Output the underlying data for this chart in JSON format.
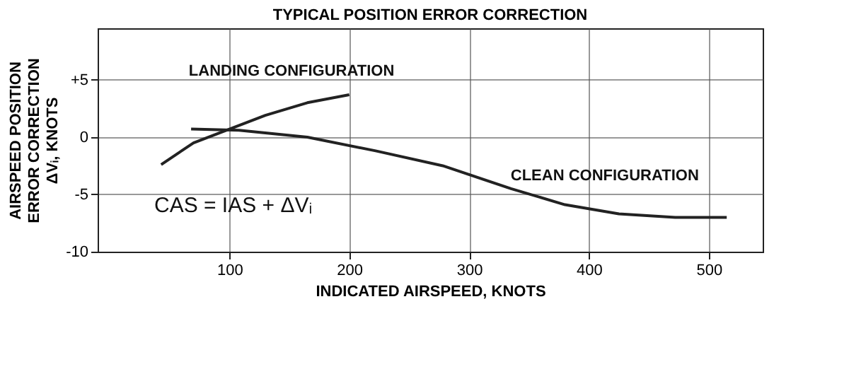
{
  "chart_data": {
    "type": "line",
    "title": "TYPICAL POSITION ERROR CORRECTION",
    "xlabel": "INDICATED AIRSPEED, KNOTS",
    "ylabel": "AIRSPEED POSITION\nERROR CORRECTION\nΔVᵢ, KNOTS",
    "xlim": [
      -10,
      545
    ],
    "xticks": [
      100,
      200,
      300,
      400,
      500
    ],
    "ylim": [
      -10,
      9.5
    ],
    "yticks": [
      -10,
      -5,
      0,
      {
        "value": 5,
        "label": "+5"
      }
    ],
    "grid": true,
    "line_style": "solid",
    "marker": "none",
    "series": [
      {
        "color": "#222222",
        "x": [
          43,
          70,
          100,
          130,
          165,
          200
        ],
        "values": [
          -2.4,
          -0.5,
          0.7,
          1.9,
          3.0,
          3.7
        ]
      },
      {
        "color": "#222222",
        "x": [
          68,
          108,
          165,
          222,
          278,
          335,
          380,
          425,
          472,
          515
        ],
        "values": [
          0.7,
          0.6,
          0,
          -1.2,
          -2.5,
          -4.5,
          -5.9,
          -6.7,
          -7,
          -7
        ]
      }
    ],
    "annotations": [
      {
        "text": "LANDING CONFIGURATION",
        "x": 140,
        "y": 2.3
      },
      {
        "text": "CLEAN CONFIGURATION",
        "x": 425,
        "y": -6.1
      },
      "CAS = IAS + ΔVᵢ"
    ]
  }
}
